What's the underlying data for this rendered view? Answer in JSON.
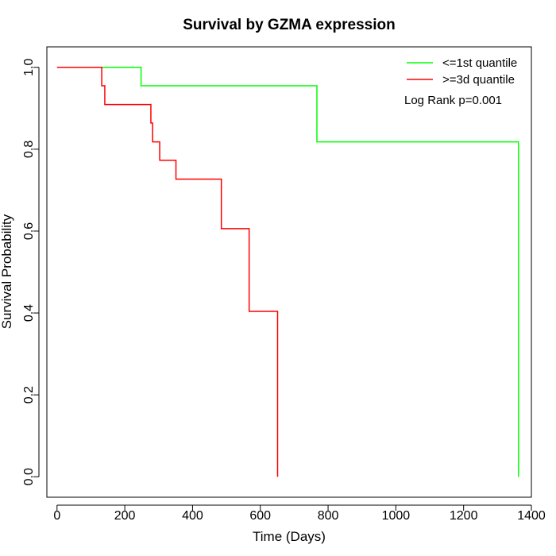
{
  "chart_data": {
    "type": "line",
    "title": "Survival by GZMA expression",
    "xlabel": "Time (Days)",
    "ylabel": "Survival Probability",
    "xlim": [
      -30,
      1400
    ],
    "ylim": [
      -0.05,
      1.05
    ],
    "xticks": [
      "0",
      "200",
      "400",
      "600",
      "800",
      "1000",
      "1200",
      "1400"
    ],
    "yticks": [
      "0.0",
      "0.2",
      "0.4",
      "0.6",
      "0.8",
      "1.0"
    ],
    "grid": false,
    "legend_position": "top-right",
    "annotation": "Log Rank p=0.001",
    "series": [
      {
        "name": "<=1st quantile",
        "color": "#00ff00",
        "x": [
          0,
          248,
          767,
          1362,
          1362
        ],
        "y": [
          1.0,
          0.955,
          0.818,
          0.818,
          0.0
        ]
      },
      {
        "name": ">=3d quantile",
        "color": "#ff0000",
        "x": [
          0,
          132,
          141,
          277,
          282,
          303,
          351,
          485,
          567,
          651,
          651
        ],
        "y": [
          1.0,
          0.955,
          0.909,
          0.864,
          0.818,
          0.773,
          0.727,
          0.606,
          0.404,
          0.404,
          0.0
        ]
      }
    ]
  }
}
